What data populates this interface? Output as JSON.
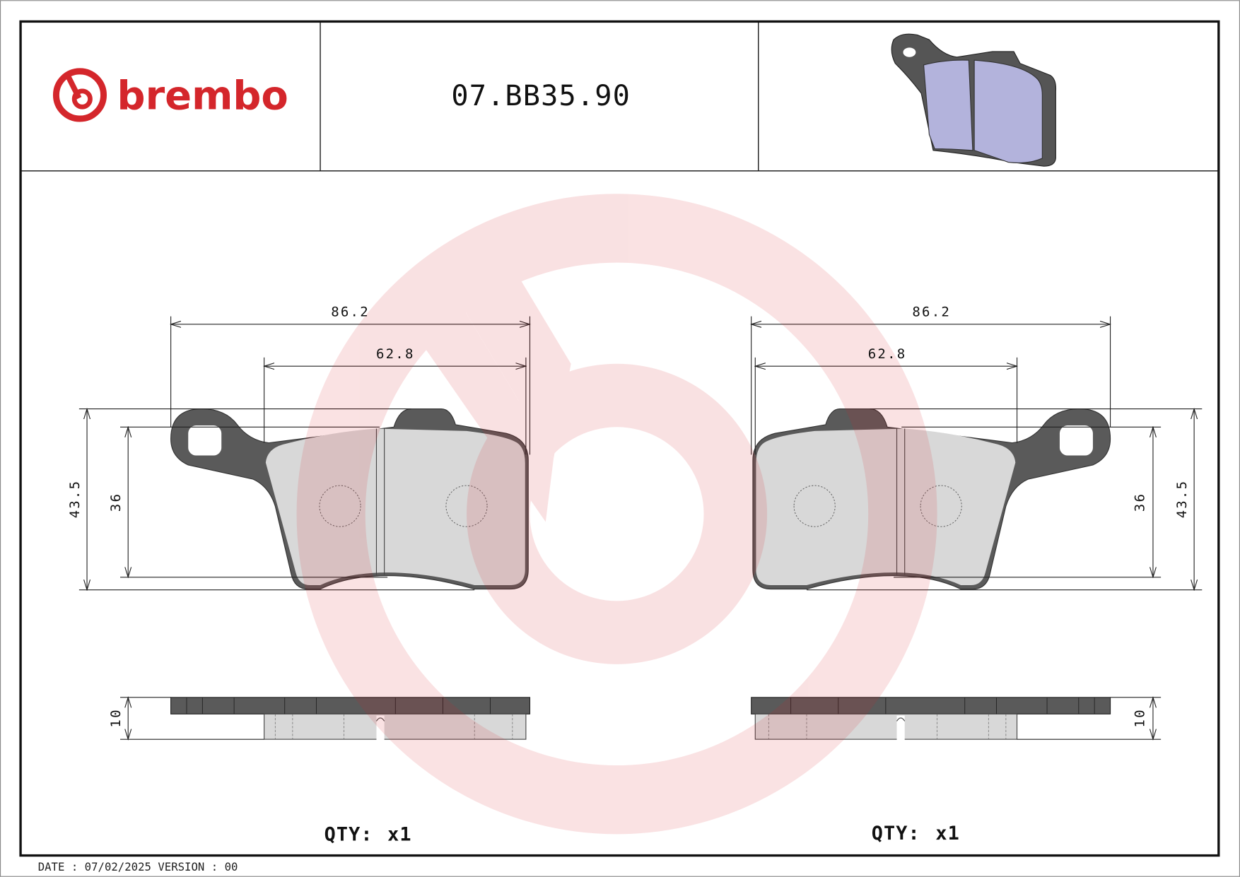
{
  "header": {
    "brand": "brembo",
    "part_number": "07.BB35.90",
    "brand_color": "#d4262b",
    "thumbnail": "brake-pad-3d-icon"
  },
  "left_view": {
    "width_overall": "86.2",
    "width_friction": "62.8",
    "height_overall": "43.5",
    "height_friction": "36",
    "thickness": "10",
    "qty_label": "QTY:",
    "qty_value": "x1"
  },
  "right_view": {
    "width_overall": "86.2",
    "width_friction": "62.8",
    "height_overall": "43.5",
    "height_friction": "36",
    "thickness": "10",
    "qty_label": "QTY:",
    "qty_value": "x1"
  },
  "footer": {
    "date_label": "DATE : 07/02/2025 VERSION : 00"
  }
}
